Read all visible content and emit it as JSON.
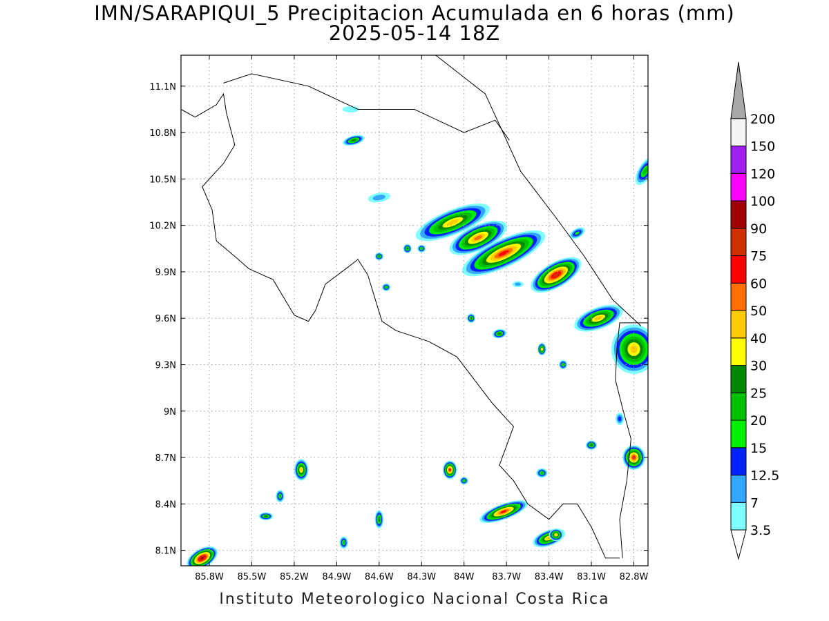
{
  "title": "IMN/SARAPIQUI_5 Precipitacion Acumulada en 6 horas (mm)",
  "subtitle": "2025-05-14 18Z",
  "footer": "Instituto Meteorologico Nacional Costa Rica",
  "map": {
    "lon_range": [
      -86.0,
      -82.7
    ],
    "lat_range": [
      8.0,
      11.3
    ],
    "lon_ticks": [
      {
        "value": -85.8,
        "label": "85.8W"
      },
      {
        "value": -85.5,
        "label": "85.5W"
      },
      {
        "value": -85.2,
        "label": "85.2W"
      },
      {
        "value": -84.9,
        "label": "84.9W"
      },
      {
        "value": -84.6,
        "label": "84.6W"
      },
      {
        "value": -84.3,
        "label": "84.3W"
      },
      {
        "value": -84.0,
        "label": "84W"
      },
      {
        "value": -83.7,
        "label": "83.7W"
      },
      {
        "value": -83.4,
        "label": "83.4W"
      },
      {
        "value": -83.1,
        "label": "83.1W"
      },
      {
        "value": -82.8,
        "label": "82.8W"
      }
    ],
    "lat_ticks": [
      {
        "value": 8.1,
        "label": "8.1N"
      },
      {
        "value": 8.4,
        "label": "8.4N"
      },
      {
        "value": 8.7,
        "label": "8.7N"
      },
      {
        "value": 9.0,
        "label": "9N"
      },
      {
        "value": 9.3,
        "label": "9.3N"
      },
      {
        "value": 9.6,
        "label": "9.6N"
      },
      {
        "value": 9.9,
        "label": "9.9N"
      },
      {
        "value": 10.2,
        "label": "10.2N"
      },
      {
        "value": 10.5,
        "label": "10.5N"
      },
      {
        "value": 10.8,
        "label": "10.8N"
      },
      {
        "value": 11.1,
        "label": "11.1N"
      }
    ],
    "grid": true
  },
  "legend": {
    "levels": [
      "3.5",
      "7",
      "12.5",
      "15",
      "20",
      "25",
      "30",
      "40",
      "50",
      "60",
      "75",
      "90",
      "100",
      "120",
      "150",
      "200"
    ],
    "colors": [
      "#7fffff",
      "#33a6ff",
      "#0022ff",
      "#00f000",
      "#00c000",
      "#008800",
      "#ffff00",
      "#ffcc00",
      "#ff7000",
      "#ff0000",
      "#d03000",
      "#a00000",
      "#ff00ff",
      "#a020f0",
      "#f2f2f2",
      "#a8a8a8"
    ]
  },
  "coastline": [
    [
      -86.0,
      10.95
    ],
    [
      -85.9,
      10.9
    ],
    [
      -85.75,
      10.98
    ],
    [
      -85.7,
      11.05
    ],
    [
      -85.68,
      10.93
    ],
    [
      -85.62,
      10.72
    ],
    [
      -85.7,
      10.6
    ],
    [
      -85.85,
      10.45
    ],
    [
      -85.78,
      10.3
    ],
    [
      -85.75,
      10.1
    ],
    [
      -85.62,
      10.0
    ],
    [
      -85.52,
      9.92
    ],
    [
      -85.35,
      9.85
    ],
    [
      -85.2,
      9.62
    ],
    [
      -85.1,
      9.58
    ],
    [
      -85.05,
      9.65
    ],
    [
      -84.98,
      9.82
    ],
    [
      -84.82,
      9.93
    ],
    [
      -84.75,
      9.98
    ],
    [
      -84.68,
      9.88
    ],
    [
      -84.62,
      9.7
    ],
    [
      -84.58,
      9.58
    ],
    [
      -84.48,
      9.52
    ],
    [
      -84.25,
      9.45
    ],
    [
      -84.05,
      9.35
    ],
    [
      -83.8,
      9.05
    ],
    [
      -83.65,
      8.9
    ],
    [
      -83.75,
      8.65
    ],
    [
      -83.65,
      8.55
    ],
    [
      -83.55,
      8.4
    ],
    [
      -83.4,
      8.3
    ],
    [
      -83.3,
      8.4
    ],
    [
      -83.2,
      8.4
    ],
    [
      -83.1,
      8.25
    ],
    [
      -83.0,
      8.05
    ],
    [
      -82.9,
      8.05
    ]
  ],
  "caribbean_coast": [
    [
      -84.2,
      11.3
    ],
    [
      -83.85,
      11.05
    ],
    [
      -83.7,
      10.75
    ],
    [
      -83.6,
      10.55
    ],
    [
      -83.35,
      10.25
    ],
    [
      -83.15,
      10.0
    ],
    [
      -82.95,
      9.72
    ],
    [
      -82.75,
      9.55
    ]
  ],
  "nicaragua_border": [
    [
      -85.7,
      11.12
    ],
    [
      -85.5,
      11.18
    ],
    [
      -85.1,
      11.1
    ],
    [
      -84.75,
      10.95
    ],
    [
      -84.35,
      10.95
    ],
    [
      -84.0,
      10.8
    ],
    [
      -83.78,
      10.88
    ],
    [
      -83.68,
      10.75
    ]
  ],
  "panama_border": [
    [
      -82.58,
      9.57
    ],
    [
      -82.9,
      9.57
    ],
    [
      -82.92,
      9.4
    ],
    [
      -82.93,
      9.2
    ],
    [
      -82.88,
      9.02
    ],
    [
      -82.82,
      8.82
    ],
    [
      -82.85,
      8.55
    ],
    [
      -82.9,
      8.3
    ],
    [
      -82.88,
      8.05
    ]
  ],
  "rain_cells": [
    {
      "lon": -84.08,
      "lat": 10.22,
      "rx": 0.28,
      "ry": 0.08,
      "angle": -22,
      "value": 45
    },
    {
      "lon": -83.72,
      "lat": 10.02,
      "rx": 0.32,
      "ry": 0.09,
      "angle": -25,
      "value": 60
    },
    {
      "lon": -83.35,
      "lat": 9.88,
      "rx": 0.2,
      "ry": 0.08,
      "angle": -30,
      "value": 75
    },
    {
      "lon": -83.9,
      "lat": 10.12,
      "rx": 0.22,
      "ry": 0.08,
      "angle": -25,
      "value": 50
    },
    {
      "lon": -83.05,
      "lat": 9.6,
      "rx": 0.18,
      "ry": 0.07,
      "angle": -20,
      "value": 40
    },
    {
      "lon": -82.8,
      "lat": 9.4,
      "rx": 0.16,
      "ry": 0.16,
      "angle": 0,
      "value": 40
    },
    {
      "lon": -84.78,
      "lat": 10.75,
      "rx": 0.08,
      "ry": 0.03,
      "angle": -15,
      "value": 25
    },
    {
      "lon": -82.72,
      "lat": 10.55,
      "rx": 0.05,
      "ry": 0.1,
      "angle": 30,
      "value": 20
    },
    {
      "lon": -83.72,
      "lat": 8.35,
      "rx": 0.18,
      "ry": 0.05,
      "angle": -20,
      "value": 60
    },
    {
      "lon": -83.4,
      "lat": 8.18,
      "rx": 0.12,
      "ry": 0.05,
      "angle": -20,
      "value": 40
    },
    {
      "lon": -84.1,
      "lat": 8.62,
      "rx": 0.05,
      "ry": 0.06,
      "angle": 0,
      "value": 60
    },
    {
      "lon": -85.15,
      "lat": 8.62,
      "rx": 0.05,
      "ry": 0.07,
      "angle": 0,
      "value": 45
    },
    {
      "lon": -85.85,
      "lat": 8.05,
      "rx": 0.12,
      "ry": 0.06,
      "angle": -30,
      "value": 90
    },
    {
      "lon": -82.8,
      "lat": 8.7,
      "rx": 0.08,
      "ry": 0.08,
      "angle": 0,
      "value": 60
    },
    {
      "lon": -83.2,
      "lat": 10.15,
      "rx": 0.06,
      "ry": 0.03,
      "angle": -30,
      "value": 15
    },
    {
      "lon": -84.6,
      "lat": 8.3,
      "rx": 0.03,
      "ry": 0.06,
      "angle": 0,
      "value": 25
    },
    {
      "lon": -83.45,
      "lat": 9.4,
      "rx": 0.03,
      "ry": 0.04,
      "angle": 0,
      "value": 40
    },
    {
      "lon": -83.95,
      "lat": 9.6,
      "rx": 0.03,
      "ry": 0.03,
      "angle": 0,
      "value": 25
    },
    {
      "lon": -83.75,
      "lat": 9.5,
      "rx": 0.05,
      "ry": 0.03,
      "angle": -10,
      "value": 25
    },
    {
      "lon": -84.4,
      "lat": 10.05,
      "rx": 0.03,
      "ry": 0.03,
      "angle": 0,
      "value": 25
    },
    {
      "lon": -84.6,
      "lat": 10.0,
      "rx": 0.03,
      "ry": 0.025,
      "angle": 0,
      "value": 25
    },
    {
      "lon": -84.55,
      "lat": 9.8,
      "rx": 0.03,
      "ry": 0.025,
      "angle": 0,
      "value": 20
    },
    {
      "lon": -85.4,
      "lat": 8.32,
      "rx": 0.05,
      "ry": 0.025,
      "angle": 0,
      "value": 25
    },
    {
      "lon": -84.85,
      "lat": 8.15,
      "rx": 0.03,
      "ry": 0.04,
      "angle": 0,
      "value": 20
    },
    {
      "lon": -83.1,
      "lat": 8.78,
      "rx": 0.04,
      "ry": 0.03,
      "angle": 0,
      "value": 25
    },
    {
      "lon": -83.45,
      "lat": 8.6,
      "rx": 0.04,
      "ry": 0.03,
      "angle": 0,
      "value": 20
    },
    {
      "lon": -84.3,
      "lat": 10.05,
      "rx": 0.03,
      "ry": 0.025,
      "angle": 0,
      "value": 20
    },
    {
      "lon": -84.6,
      "lat": 10.38,
      "rx": 0.08,
      "ry": 0.03,
      "angle": -10,
      "value": 7
    },
    {
      "lon": -84.8,
      "lat": 10.95,
      "rx": 0.06,
      "ry": 0.02,
      "angle": 0,
      "value": 3.5
    },
    {
      "lon": -83.62,
      "lat": 9.82,
      "rx": 0.04,
      "ry": 0.02,
      "angle": 0,
      "value": 7
    },
    {
      "lon": -83.3,
      "lat": 9.3,
      "rx": 0.03,
      "ry": 0.03,
      "angle": 0,
      "value": 20
    },
    {
      "lon": -83.35,
      "lat": 8.2,
      "rx": 0.05,
      "ry": 0.04,
      "angle": 0,
      "value": 40
    },
    {
      "lon": -82.9,
      "lat": 8.95,
      "rx": 0.03,
      "ry": 0.04,
      "angle": 0,
      "value": 12.5
    },
    {
      "lon": -84.0,
      "lat": 8.55,
      "rx": 0.03,
      "ry": 0.025,
      "angle": 0,
      "value": 20
    },
    {
      "lon": -85.3,
      "lat": 8.45,
      "rx": 0.03,
      "ry": 0.04,
      "angle": 0,
      "value": 20
    }
  ]
}
